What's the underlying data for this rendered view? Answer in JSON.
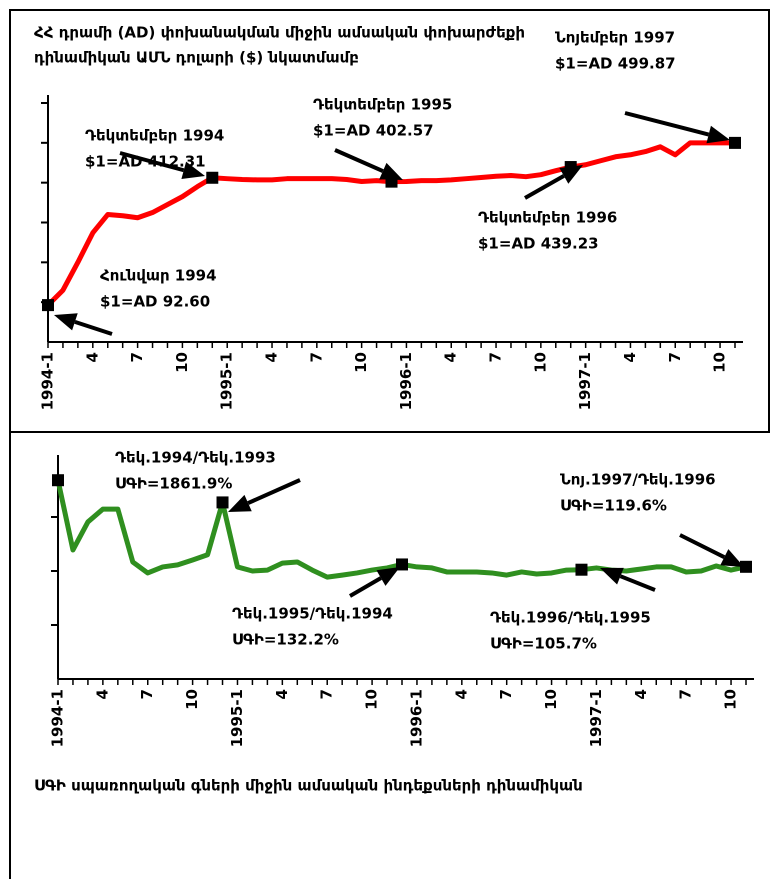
{
  "chart_data": [
    {
      "type": "line",
      "title": [
        "ՀՀ դրամի (AD) փոխանակման միջին  ամսական փոխարժեքի",
        "դինամիկան ԱՄՆ դոլարի ($) նկատմամբ"
      ],
      "categories": [
        "1994-1",
        null,
        null,
        "4",
        null,
        null,
        "7",
        null,
        null,
        "10",
        null,
        null,
        "1995-1",
        null,
        null,
        "4",
        null,
        null,
        "7",
        null,
        null,
        "10",
        null,
        null,
        "1996-1",
        null,
        null,
        "4",
        null,
        null,
        "7",
        null,
        null,
        "10",
        null,
        null,
        "1997-1",
        null,
        null,
        "4",
        null,
        null,
        "7",
        null,
        null,
        "10",
        null
      ],
      "color": "#ff0000",
      "values": [
        92.6,
        130,
        200,
        274,
        320,
        317,
        312,
        325,
        345,
        365,
        390,
        412.31,
        410,
        408,
        407,
        407,
        410,
        410,
        410,
        410,
        408,
        403,
        405,
        402.57,
        403,
        405,
        405,
        407,
        410,
        413,
        416,
        418,
        415,
        420,
        430,
        439.23,
        445,
        455,
        465,
        470,
        478,
        490,
        470,
        500,
        500,
        500,
        499.87
      ],
      "value_notes": [
        "Հունվար 1994",
        null,
        null,
        null,
        null,
        null,
        null,
        null,
        null,
        null,
        null,
        "Դեկտեմբեր 1994",
        null,
        null,
        null,
        null,
        null,
        null,
        null,
        null,
        null,
        null,
        null,
        "Դեկտեմբեր 1995",
        null,
        null,
        null,
        null,
        null,
        null,
        null,
        null,
        null,
        null,
        null,
        "Դեկտեմբեր 1996",
        null,
        null,
        null,
        null,
        null,
        null,
        null,
        null,
        null,
        null,
        "Նոյեմբեր 1997"
      ],
      "value_labels": [
        "$1=AD 92.60",
        null,
        null,
        null,
        null,
        null,
        null,
        null,
        null,
        null,
        null,
        "$1=AD 412.31",
        null,
        null,
        null,
        null,
        null,
        null,
        null,
        null,
        null,
        null,
        null,
        "$1=AD 402.57",
        null,
        null,
        null,
        null,
        null,
        null,
        null,
        null,
        null,
        null,
        null,
        "$1=AD 439.23",
        null,
        null,
        null,
        null,
        null,
        null,
        null,
        null,
        null,
        null,
        "$1=AD 499.87"
      ],
      "ylim": [
        0,
        600
      ],
      "yticks": [
        100,
        200,
        300,
        400,
        500,
        600
      ],
      "log_scale": false
    },
    {
      "type": "line",
      "categories": [
        "1994-1",
        null,
        null,
        "4",
        null,
        null,
        "7",
        null,
        null,
        "10",
        null,
        null,
        "1995-1",
        null,
        null,
        "4",
        null,
        null,
        "7",
        null,
        null,
        "10",
        null,
        null,
        "1996-1",
        null,
        null,
        "4",
        null,
        null,
        "7",
        null,
        null,
        "10",
        null,
        null,
        "1997-1",
        null,
        null,
        "4",
        null,
        null,
        "7",
        null,
        null,
        "10",
        null
      ],
      "color": "#2f8f1f",
      "values": [
        4800,
        245,
        810,
        1400,
        1400,
        147,
        92,
        119,
        130,
        160,
        200,
        1861.9,
        119,
        100,
        104,
        140,
        147,
        104,
        77,
        84,
        92,
        104,
        114,
        132.2,
        119,
        114,
        96,
        96,
        96,
        92,
        84,
        96,
        88,
        92,
        104,
        105.7,
        114,
        104,
        100,
        109,
        119,
        119,
        96,
        100,
        124,
        104,
        119.6
      ],
      "value_notes": [
        null,
        null,
        null,
        null,
        null,
        null,
        null,
        null,
        null,
        null,
        null,
        "Դեկ.1994/Դեկ.1993",
        null,
        null,
        null,
        null,
        null,
        null,
        null,
        null,
        null,
        null,
        null,
        "Դեկ.1995/Դեկ.1994",
        null,
        null,
        null,
        null,
        null,
        null,
        null,
        null,
        null,
        null,
        null,
        "Դեկ.1996/Դեկ.1995",
        null,
        null,
        null,
        null,
        null,
        null,
        null,
        null,
        null,
        null,
        "Նոյ.1997/Դեկ.1996"
      ],
      "value_labels": [
        null,
        null,
        null,
        null,
        null,
        null,
        null,
        null,
        null,
        null,
        null,
        "ՍԳԻ=1861.9%",
        null,
        null,
        null,
        null,
        null,
        null,
        null,
        null,
        null,
        null,
        null,
        "ՍԳԻ=132.2%",
        null,
        null,
        null,
        null,
        null,
        null,
        null,
        null,
        null,
        null,
        null,
        "ՍԳԻ=105.7%",
        null,
        null,
        null,
        null,
        null,
        null,
        null,
        null,
        null,
        null,
        "ՍԳԻ=119.6%"
      ],
      "ylim": [
        1,
        10000
      ],
      "yticks": [
        10,
        100,
        1000
      ],
      "log_scale": true,
      "caption": "ՍԳԻ սպառողական գների միջին ամսական ինդեքսների դինամիկան"
    }
  ]
}
